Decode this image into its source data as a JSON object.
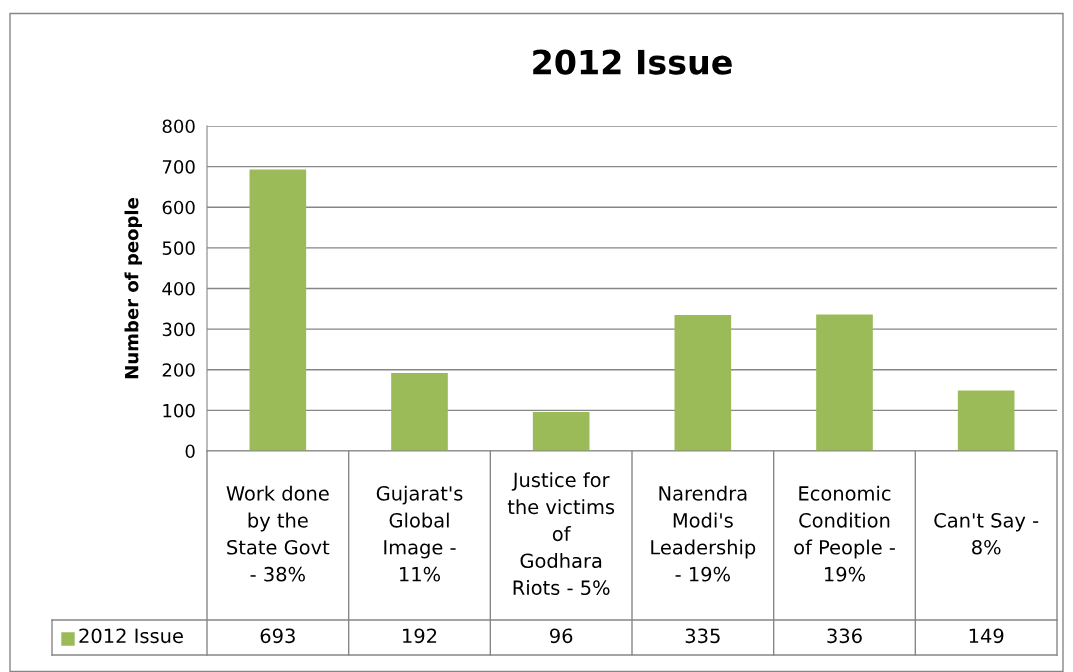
{
  "chart_data": {
    "type": "bar",
    "title": "2012 Issue",
    "ylabel": "Number of people",
    "categories": [
      "Work done\nby the\nState Govt\n- 38%",
      "Gujarat's\nGlobal\nImage -\n11%",
      "Justice for\nthe victims\nof\nGodhara\nRiots - 5%",
      "Narendra\nModi's\nLeadership\n- 19%",
      "Economic\nCondition\nof People -\n19%",
      "Can't Say -\n8%"
    ],
    "series": [
      {
        "name": "2012 Issue",
        "color": "#9bbb59",
        "values": [
          693,
          192,
          96,
          335,
          336,
          149
        ]
      }
    ],
    "ylim": [
      0,
      800
    ],
    "yticks": [
      0,
      100,
      200,
      300,
      400,
      500,
      600,
      700,
      800
    ],
    "grid": "y",
    "legend": "bottom",
    "data_labels": true
  }
}
